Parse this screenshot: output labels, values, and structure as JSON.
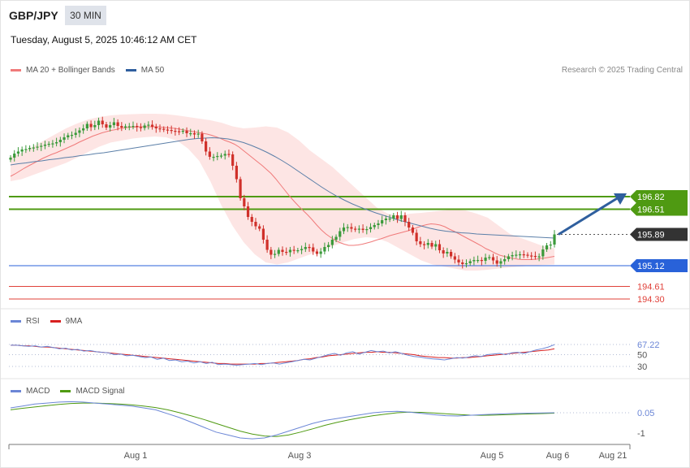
{
  "header": {
    "pair": "GBP/JPY",
    "timeframe": "30 MIN",
    "timestamp": "Tuesday, August 5, 2025 10:46:12 AM CET"
  },
  "legend": {
    "ma20": "MA 20 + Bollinger Bands",
    "ma50": "MA 50",
    "credit": "Research © 2025 Trading Central"
  },
  "rsi_legend": {
    "rsi": "RSI",
    "ma9": "9MA"
  },
  "macd_legend": {
    "macd": "MACD",
    "signal": "MACD Signal"
  },
  "colors": {
    "resistance": "#4f9a12",
    "current": "#333333",
    "pivot": "#2962d9",
    "support": "#e0413a",
    "ma20": "#f07a7a",
    "ma50": "#5b7fa8",
    "bollinger": "#fde0df",
    "bull": "#3a9a3a",
    "bear": "#d0302a",
    "rsi": "#6b86d6",
    "rsi9": "#d82020",
    "macd": "#6b86d6",
    "signal": "#4f9a12",
    "arrow": "#2f5f9e"
  },
  "chart_data": [
    {
      "type": "line",
      "panel": "price",
      "ylim": [
        194.0,
        198.5
      ],
      "x_ticks": [
        "Aug 1",
        "Aug 3",
        "Aug 5",
        "Aug 6",
        "Aug 21"
      ],
      "levels": [
        {
          "name": "resistance-2",
          "value": 196.82,
          "label": "196.82",
          "kind": "resistance"
        },
        {
          "name": "resistance-1",
          "value": 196.51,
          "label": "196.51",
          "kind": "resistance"
        },
        {
          "name": "current",
          "value": 195.89,
          "label": "195.89",
          "kind": "current"
        },
        {
          "name": "pivot",
          "value": 195.12,
          "label": "195.12",
          "kind": "pivot"
        },
        {
          "name": "support-1",
          "value": 194.61,
          "label": "194.61",
          "kind": "support"
        },
        {
          "name": "support-2",
          "value": 194.3,
          "label": "194.30",
          "kind": "support"
        }
      ],
      "close": [
        197.78,
        197.88,
        197.93,
        197.98,
        197.99,
        198.02,
        198.03,
        198.05,
        198.07,
        198.1,
        198.12,
        198.13,
        198.16,
        198.22,
        198.28,
        198.33,
        198.34,
        198.39,
        198.45,
        198.5,
        198.61,
        198.53,
        198.58,
        198.69,
        198.6,
        198.52,
        198.58,
        198.65,
        198.56,
        198.52,
        198.55,
        198.55,
        198.56,
        198.53,
        198.51,
        198.57,
        198.59,
        198.54,
        198.5,
        198.49,
        198.47,
        198.46,
        198.44,
        198.43,
        198.42,
        198.44,
        198.38,
        198.38,
        198.35,
        198.37,
        198.18,
        197.93,
        197.8,
        197.8,
        197.82,
        197.83,
        197.87,
        197.86,
        197.58,
        197.25,
        196.78,
        196.58,
        196.32,
        196.2,
        196.09,
        196.03,
        195.76,
        195.51,
        195.39,
        195.41,
        195.51,
        195.46,
        195.45,
        195.51,
        195.49,
        195.5,
        195.53,
        195.58,
        195.57,
        195.47,
        195.41,
        195.47,
        195.58,
        195.63,
        195.76,
        195.83,
        195.97,
        196.06,
        196.07,
        196.03,
        196.01,
        196.03,
        196.0,
        196.02,
        196.07,
        196.12,
        196.16,
        196.24,
        196.28,
        196.28,
        196.36,
        196.27,
        196.36,
        196.2,
        196.06,
        195.93,
        195.72,
        195.65,
        195.63,
        195.68,
        195.59,
        195.65,
        195.5,
        195.42,
        195.46,
        195.35,
        195.27,
        195.2,
        195.16,
        195.18,
        195.23,
        195.26,
        195.26,
        195.24,
        195.32,
        195.33,
        195.25,
        195.17,
        195.23,
        195.28,
        195.35,
        195.38,
        195.39,
        195.4,
        195.39,
        195.37,
        195.36,
        195.34,
        195.35,
        195.52,
        195.62,
        195.64,
        195.89
      ],
      "ma20": [
        197.32,
        197.38,
        197.45,
        197.52,
        197.58,
        197.64,
        197.7,
        197.76,
        197.81,
        197.86,
        197.9,
        197.95,
        198.0,
        198.05,
        198.1,
        198.16,
        198.21,
        198.26,
        198.31,
        198.35,
        198.39,
        198.42,
        198.45,
        198.47,
        198.5,
        198.51,
        198.53,
        198.53,
        198.54,
        198.54,
        198.54,
        198.54,
        198.54,
        198.53,
        198.52,
        198.51,
        198.5,
        198.48,
        198.46,
        198.44,
        198.42,
        198.4,
        198.38,
        198.36,
        198.33,
        198.29,
        198.25,
        198.2,
        198.16,
        198.11,
        198.04,
        197.95,
        197.86,
        197.77,
        197.68,
        197.59,
        197.49,
        197.39,
        197.26,
        197.12,
        196.98,
        196.84,
        196.71,
        196.59,
        196.48,
        196.37,
        196.25,
        196.12,
        196.0,
        195.9,
        195.82,
        195.75,
        195.69,
        195.65,
        195.62,
        195.62,
        195.63,
        195.65,
        195.68,
        195.71,
        195.75,
        195.78,
        195.82,
        195.86,
        195.89,
        195.92,
        195.95,
        195.98,
        196.02,
        196.06,
        196.1,
        196.13,
        196.15,
        196.14,
        196.12,
        196.08,
        196.02,
        195.97,
        195.91,
        195.85,
        195.79,
        195.73,
        195.67,
        195.61,
        195.54,
        195.49,
        195.43,
        195.38,
        195.35,
        195.32,
        195.3,
        195.28,
        195.27,
        195.27,
        195.27,
        195.28,
        195.3,
        195.31,
        195.33,
        195.35
      ],
      "ma50": [
        197.6,
        197.63,
        197.65,
        197.68,
        197.7,
        197.73,
        197.75,
        197.78,
        197.8,
        197.83,
        197.85,
        197.88,
        197.9,
        197.93,
        197.96,
        197.99,
        198.02,
        198.05,
        198.08,
        198.11,
        198.14,
        198.17,
        198.2,
        198.23,
        198.25,
        198.26,
        198.27,
        198.26,
        198.24,
        198.2,
        198.15,
        198.08,
        198.0,
        197.91,
        197.81,
        197.7,
        197.58,
        197.45,
        197.32,
        197.19,
        197.06,
        196.94,
        196.83,
        196.73,
        196.64,
        196.56,
        196.49,
        196.42,
        196.36,
        196.3,
        196.24,
        196.19,
        196.14,
        196.09,
        196.04,
        196.0,
        195.97,
        195.95,
        195.93,
        195.92,
        195.9,
        195.89,
        195.88,
        195.87,
        195.86,
        195.85,
        195.84,
        195.83,
        195.82,
        195.81,
        195.8
      ],
      "bb_upper": [
        197.8,
        197.9,
        198.05,
        198.2,
        198.35,
        198.5,
        198.62,
        198.72,
        198.78,
        198.82,
        198.84,
        198.85,
        198.86,
        198.86,
        198.85,
        198.82,
        198.78,
        198.74,
        198.7,
        198.64,
        198.55,
        198.5,
        198.52,
        198.55,
        198.52,
        198.4,
        198.2,
        197.95,
        197.75,
        197.55,
        197.3,
        197.05,
        196.8,
        196.55,
        196.4,
        196.35,
        196.4,
        196.42,
        196.45,
        196.48,
        196.5,
        196.48,
        196.4,
        196.3,
        196.1,
        195.9,
        195.8,
        195.7,
        195.6,
        195.55
      ],
      "bb_lower": [
        197.2,
        197.25,
        197.35,
        197.45,
        197.55,
        197.65,
        197.78,
        197.92,
        198.05,
        198.15,
        198.2,
        198.25,
        198.28,
        198.3,
        198.28,
        198.2,
        198.0,
        197.7,
        197.2,
        196.6,
        196.1,
        195.7,
        195.4,
        195.2,
        195.15,
        195.2,
        195.3,
        195.4,
        195.5,
        195.6,
        195.7,
        195.78,
        195.82,
        195.8,
        195.7,
        195.55,
        195.4,
        195.25,
        195.15,
        195.1,
        195.05,
        195.0,
        195.0,
        195.02,
        195.05,
        195.08,
        195.1,
        195.12,
        195.14,
        195.15
      ]
    },
    {
      "type": "line",
      "panel": "rsi",
      "ylim": [
        0,
        100
      ],
      "ticks": [
        {
          "value": 67.22,
          "label": "67.22"
        },
        {
          "value": 50,
          "label": "50"
        },
        {
          "value": 30,
          "label": "30"
        }
      ],
      "rsi": [
        66,
        66,
        65,
        64,
        65,
        63,
        64,
        62,
        60,
        61,
        58,
        59,
        56,
        57,
        55,
        54,
        53,
        50,
        51,
        48,
        49,
        47,
        45,
        46,
        42,
        44,
        40,
        41,
        38,
        39,
        36,
        38,
        35,
        37,
        33,
        34,
        33,
        32,
        33,
        34,
        35,
        33,
        35,
        36,
        34,
        36,
        38,
        40,
        42,
        41,
        44,
        47,
        50,
        52,
        49,
        53,
        55,
        51,
        54,
        57,
        55,
        56,
        53,
        55,
        52,
        49,
        47,
        46,
        44,
        43,
        42,
        41,
        43,
        45,
        44,
        46,
        48,
        47,
        50,
        51,
        52,
        50,
        53,
        54,
        52,
        55,
        58,
        60,
        63,
        67
      ],
      "ma9": [
        66,
        66,
        65,
        65,
        64,
        63,
        63,
        62,
        61,
        60,
        59,
        58,
        57,
        56,
        55,
        54,
        53,
        52,
        51,
        50,
        49,
        48,
        47,
        46,
        45,
        44,
        43,
        42,
        41,
        40,
        39,
        38,
        37,
        36,
        35,
        35,
        34,
        34,
        34,
        34,
        34,
        35,
        35,
        36,
        37,
        38,
        39,
        40,
        42,
        43,
        45,
        46,
        48,
        49,
        50,
        51,
        52,
        53,
        54,
        54,
        55,
        54,
        54,
        53,
        52,
        51,
        50,
        48,
        47,
        46,
        45,
        45,
        44,
        44,
        45,
        45,
        46,
        47,
        48,
        49,
        50,
        51,
        52,
        53,
        54,
        55,
        56,
        57,
        58,
        60
      ]
    },
    {
      "type": "line",
      "panel": "macd",
      "ticks": [
        {
          "value": 0.05,
          "label": "0.05"
        },
        {
          "value": -1,
          "label": "-1"
        }
      ],
      "macd": [
        0.3,
        0.4,
        0.5,
        0.55,
        0.6,
        0.62,
        0.6,
        0.55,
        0.5,
        0.45,
        0.4,
        0.3,
        0.2,
        0.0,
        -0.2,
        -0.45,
        -0.7,
        -0.95,
        -1.1,
        -1.25,
        -1.3,
        -1.25,
        -1.1,
        -0.9,
        -0.7,
        -0.5,
        -0.35,
        -0.25,
        -0.15,
        -0.05,
        0.05,
        0.1,
        0.12,
        0.08,
        0.02,
        -0.05,
        -0.1,
        -0.12,
        -0.08,
        -0.05,
        -0.02,
        0.0,
        0.02,
        0.03,
        0.04,
        0.05
      ],
      "signal": [
        0.2,
        0.28,
        0.35,
        0.42,
        0.48,
        0.53,
        0.55,
        0.55,
        0.53,
        0.5,
        0.46,
        0.4,
        0.32,
        0.2,
        0.05,
        -0.12,
        -0.3,
        -0.5,
        -0.7,
        -0.9,
        -1.05,
        -1.15,
        -1.18,
        -1.1,
        -0.95,
        -0.78,
        -0.6,
        -0.45,
        -0.32,
        -0.2,
        -0.1,
        -0.02,
        0.05,
        0.08,
        0.07,
        0.04,
        0.0,
        -0.04,
        -0.07,
        -0.08,
        -0.07,
        -0.05,
        -0.03,
        -0.01,
        0.01,
        0.03
      ]
    }
  ]
}
